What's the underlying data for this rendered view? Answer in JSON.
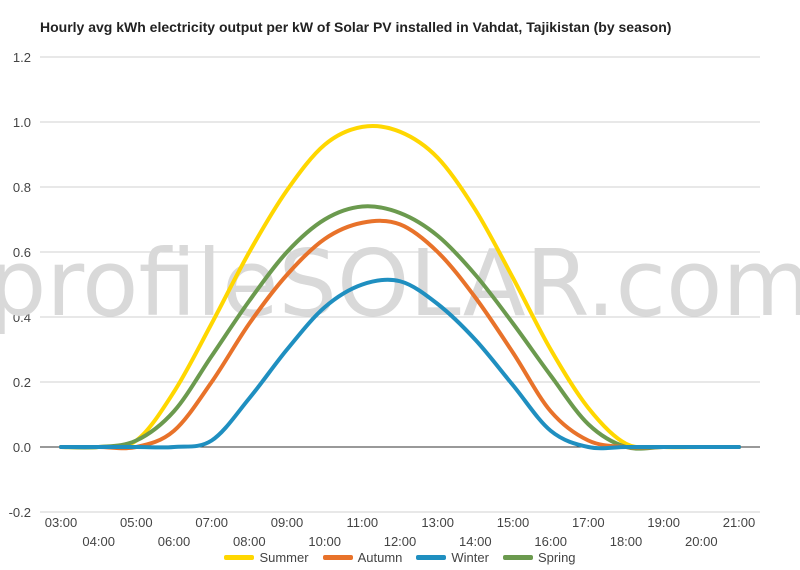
{
  "chart_data": {
    "type": "line",
    "title": "Hourly avg kWh electricity output per kW of Solar PV installed in Vahdat, Tajikistan (by season)",
    "xlabel": "",
    "ylabel": "",
    "ylim": [
      -0.2,
      1.2
    ],
    "yticks": [
      "1.2",
      "1.0",
      "0.8",
      "0.6",
      "0.4",
      "0.2",
      "0.0",
      "-0.2"
    ],
    "ytick_values": [
      1.2,
      1.0,
      0.8,
      0.6,
      0.4,
      0.2,
      0.0,
      -0.2
    ],
    "x_hours": [
      3,
      4,
      5,
      6,
      7,
      8,
      9,
      10,
      11,
      12,
      13,
      14,
      15,
      16,
      17,
      18,
      19,
      20,
      21
    ],
    "x_tick_labels": [
      "03:00",
      "04:00",
      "05:00",
      "06:00",
      "07:00",
      "08:00",
      "09:00",
      "10:00",
      "11:00",
      "12:00",
      "13:00",
      "14:00",
      "15:00",
      "16:00",
      "17:00",
      "18:00",
      "19:00",
      "20:00",
      "21:00"
    ],
    "grid": true,
    "legend_position": "bottom",
    "watermark": "profileSOLAR.com",
    "series": [
      {
        "name": "Summer",
        "color": "#FFD700",
        "values": [
          0.0,
          0.0,
          0.02,
          0.17,
          0.38,
          0.6,
          0.79,
          0.93,
          0.985,
          0.97,
          0.89,
          0.73,
          0.52,
          0.3,
          0.12,
          0.01,
          0.0,
          0.0,
          0.0
        ]
      },
      {
        "name": "Autumn",
        "color": "#E8722A",
        "values": [
          0.0,
          0.0,
          0.0,
          0.05,
          0.2,
          0.38,
          0.53,
          0.64,
          0.69,
          0.685,
          0.6,
          0.46,
          0.29,
          0.11,
          0.02,
          0.0,
          0.0,
          0.0,
          0.0
        ]
      },
      {
        "name": "Winter",
        "color": "#1F8FC0",
        "values": [
          0.0,
          0.0,
          0.0,
          0.0,
          0.02,
          0.15,
          0.3,
          0.43,
          0.5,
          0.51,
          0.44,
          0.33,
          0.19,
          0.05,
          0.0,
          0.0,
          0.0,
          0.0,
          0.0
        ]
      },
      {
        "name": "Spring",
        "color": "#6B9A4E",
        "values": [
          0.0,
          0.0,
          0.02,
          0.11,
          0.28,
          0.45,
          0.6,
          0.7,
          0.74,
          0.72,
          0.65,
          0.53,
          0.38,
          0.22,
          0.07,
          0.0,
          0.0,
          0.0,
          0.0
        ]
      }
    ]
  }
}
